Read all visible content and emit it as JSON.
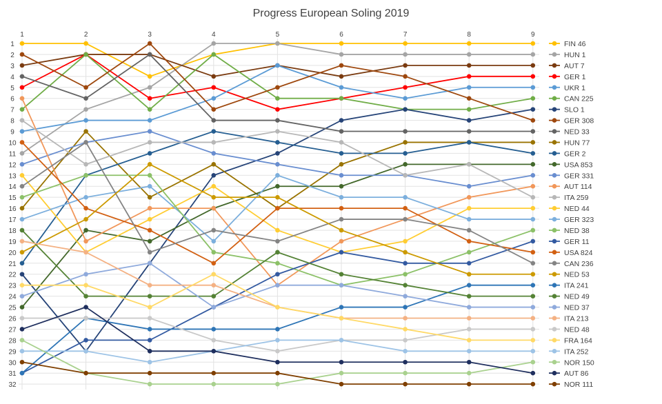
{
  "chart_data": {
    "type": "line",
    "title": "Progress European Soling 2019",
    "xlabel": "",
    "ylabel": "",
    "categories": [
      "1",
      "2",
      "3",
      "4",
      "5",
      "6",
      "7",
      "8",
      "9"
    ],
    "y_ticks": [
      1,
      2,
      3,
      4,
      5,
      6,
      7,
      8,
      9,
      10,
      11,
      12,
      13,
      14,
      15,
      16,
      17,
      18,
      19,
      20,
      21,
      22,
      23,
      24,
      25,
      26,
      27,
      28,
      29,
      30,
      31,
      32
    ],
    "ylim": [
      1,
      32
    ],
    "y_reversed": true,
    "grid": true,
    "legend_position": "right",
    "series": [
      {
        "name": "FIN 46",
        "color": "#FFC000",
        "values": [
          1,
          1,
          4,
          2,
          1,
          1,
          1,
          1,
          1
        ]
      },
      {
        "name": "HUN 1",
        "color": "#A5A5A5",
        "values": [
          11,
          7,
          5,
          1,
          1,
          2,
          2,
          2,
          2
        ]
      },
      {
        "name": "AUT 7",
        "color": "#7A3B10",
        "values": [
          3,
          2,
          2,
          4,
          3,
          4,
          3,
          3,
          3
        ]
      },
      {
        "name": "GER 1",
        "color": "#FF0000",
        "values": [
          5,
          2,
          6,
          5,
          7,
          6,
          5,
          4,
          4
        ]
      },
      {
        "name": "UKR 1",
        "color": "#5B9BD5",
        "values": [
          9,
          8,
          8,
          6,
          3,
          5,
          6,
          5,
          5
        ]
      },
      {
        "name": "CAN 225",
        "color": "#70AD47",
        "values": [
          7,
          2,
          7,
          2,
          6,
          6,
          7,
          7,
          6
        ]
      },
      {
        "name": "SLO 1",
        "color": "#264478",
        "values": [
          22,
          29,
          21,
          13,
          11,
          8,
          7,
          8,
          7
        ]
      },
      {
        "name": "GER 308",
        "color": "#9E480E",
        "values": [
          2,
          5,
          1,
          7,
          5,
          3,
          4,
          6,
          8
        ]
      },
      {
        "name": "NED 33",
        "color": "#636363",
        "values": [
          4,
          6,
          2,
          8,
          8,
          9,
          9,
          9,
          9
        ]
      },
      {
        "name": "HUN 77",
        "color": "#997300",
        "values": [
          16,
          9,
          15,
          12,
          16,
          12,
          10,
          10,
          10
        ]
      },
      {
        "name": "GER 2",
        "color": "#255E91",
        "values": [
          21,
          13,
          11,
          9,
          10,
          11,
          11,
          10,
          11
        ]
      },
      {
        "name": "USA 853",
        "color": "#43682B",
        "values": [
          25,
          18,
          19,
          16,
          14,
          14,
          12,
          12,
          12
        ]
      },
      {
        "name": "GER 331",
        "color": "#698ED0",
        "values": [
          12,
          10,
          9,
          11,
          12,
          13,
          13,
          14,
          13
        ]
      },
      {
        "name": "AUT 114",
        "color": "#F1975A",
        "values": [
          6,
          19,
          16,
          16,
          23,
          19,
          17,
          15,
          14
        ]
      },
      {
        "name": "ITA 259",
        "color": "#B7B7B7",
        "values": [
          8,
          12,
          10,
          10,
          9,
          10,
          13,
          12,
          15
        ]
      },
      {
        "name": "NED 44",
        "color": "#FFCD33",
        "values": [
          13,
          20,
          17,
          14,
          18,
          20,
          19,
          16,
          16
        ]
      },
      {
        "name": "GER 323",
        "color": "#7CAFDD",
        "values": [
          17,
          15,
          14,
          19,
          13,
          15,
          15,
          17,
          17
        ]
      },
      {
        "name": "NED 38",
        "color": "#8CC168",
        "values": [
          15,
          13,
          13,
          20,
          21,
          23,
          22,
          20,
          18
        ]
      },
      {
        "name": "GER 11",
        "color": "#335AA1",
        "values": [
          31,
          28,
          28,
          25,
          22,
          20,
          21,
          21,
          19
        ]
      },
      {
        "name": "USA 824",
        "color": "#D26012",
        "values": [
          10,
          16,
          18,
          21,
          16,
          16,
          16,
          19,
          20
        ]
      },
      {
        "name": "CAN 236",
        "color": "#848484",
        "values": [
          14,
          10,
          20,
          18,
          19,
          17,
          17,
          18,
          21
        ]
      },
      {
        "name": "NED 53",
        "color": "#CC9A00",
        "values": [
          20,
          17,
          12,
          15,
          15,
          18,
          20,
          22,
          22
        ]
      },
      {
        "name": "ITA 241",
        "color": "#2E75B6",
        "values": [
          31,
          26,
          27,
          27,
          27,
          25,
          25,
          23,
          23
        ]
      },
      {
        "name": "NED 49",
        "color": "#548235",
        "values": [
          18,
          24,
          24,
          24,
          20,
          22,
          23,
          24,
          24
        ]
      },
      {
        "name": "NED 37",
        "color": "#8FAADC",
        "values": [
          24,
          22,
          21,
          25,
          23,
          23,
          24,
          25,
          25
        ]
      },
      {
        "name": "ITA 213",
        "color": "#F4B183",
        "values": [
          19,
          20,
          23,
          23,
          25,
          26,
          26,
          26,
          26
        ]
      },
      {
        "name": "NED 48",
        "color": "#C9C9C9",
        "values": [
          26,
          26,
          26,
          28,
          29,
          28,
          28,
          27,
          27
        ]
      },
      {
        "name": "FRA 164",
        "color": "#FFD966",
        "values": [
          23,
          23,
          25,
          22,
          25,
          26,
          27,
          28,
          28
        ]
      },
      {
        "name": "ITA 252",
        "color": "#9DC3E6",
        "values": [
          29,
          29,
          30,
          29,
          28,
          28,
          29,
          29,
          29
        ]
      },
      {
        "name": "NOR 150",
        "color": "#A9D18E",
        "values": [
          28,
          31,
          32,
          32,
          32,
          31,
          31,
          31,
          30
        ]
      },
      {
        "name": "AUT 86",
        "color": "#1F2F5E",
        "values": [
          27,
          25,
          29,
          29,
          30,
          30,
          30,
          30,
          31
        ]
      },
      {
        "name": "NOR 111",
        "color": "#7F3F00",
        "values": [
          30,
          31,
          31,
          31,
          31,
          32,
          32,
          32,
          32
        ]
      }
    ]
  }
}
